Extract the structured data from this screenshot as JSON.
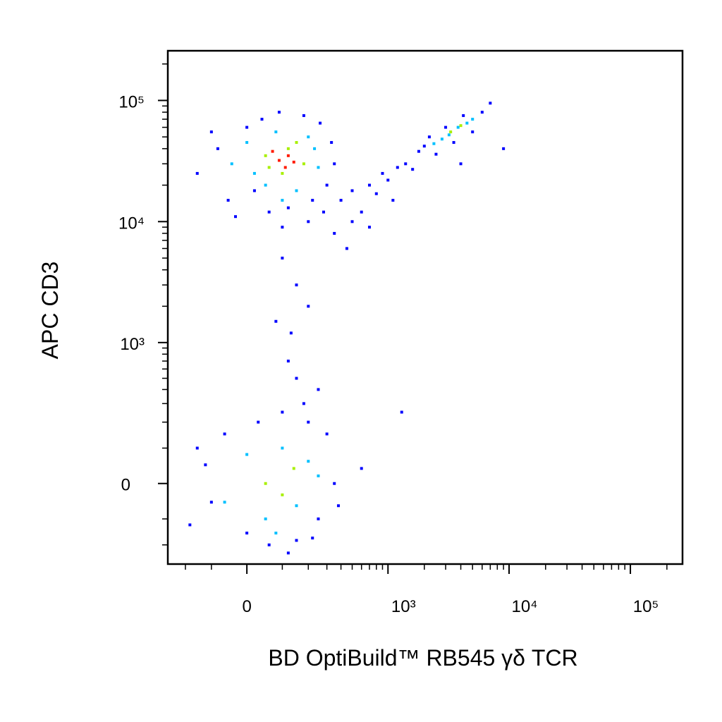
{
  "chart_data": {
    "type": "scatter",
    "x_label": "BD OptiBuild™ RB545 γδ TCR",
    "y_label": "APC CD3",
    "xscale": "biexponential",
    "yscale": "biexponential",
    "xlim": [
      -294,
      269000
    ],
    "ylim": [
      -304,
      257000
    ],
    "xticks": [
      0,
      {
        "value": 1000,
        "label": "10³"
      },
      {
        "value": 10000,
        "label": "10⁴"
      },
      {
        "value": 100000,
        "label": "10⁵"
      }
    ],
    "yticks": [
      0,
      {
        "value": 1000,
        "label": "10³"
      },
      {
        "value": 10000,
        "label": "10⁴"
      },
      {
        "value": 100000,
        "label": "10⁵"
      }
    ],
    "xminor": [
      -200,
      -100,
      100,
      200,
      300,
      400,
      500,
      600,
      700,
      800,
      900,
      2000,
      3000,
      4000,
      5000,
      6000,
      7000,
      8000,
      9000,
      20000,
      30000,
      40000,
      50000,
      60000,
      70000,
      80000,
      90000,
      200000
    ],
    "yminor": [
      -200,
      -100,
      100,
      200,
      300,
      400,
      500,
      600,
      700,
      800,
      900,
      2000,
      3000,
      4000,
      5000,
      6000,
      7000,
      8000,
      9000,
      20000,
      30000,
      40000,
      50000,
      60000,
      70000,
      80000,
      90000,
      200000
    ],
    "series": [
      {
        "color": "#0000ff",
        "x": [
          -150,
          -80,
          -50,
          0,
          20,
          40,
          60,
          90,
          120,
          180,
          220,
          260,
          300,
          330,
          350,
          -100,
          280,
          200,
          100,
          -30,
          400,
          500,
          600,
          700,
          800,
          900,
          1000,
          1200,
          1400,
          1600,
          500,
          700,
          1100,
          350,
          450,
          100,
          150,
          80,
          200,
          130,
          120,
          150,
          180,
          250,
          1300,
          1800,
          2200,
          2500,
          3000,
          3500,
          4200,
          5000,
          6000,
          7000,
          9000,
          4000,
          2000,
          -180,
          -120,
          -60,
          0,
          30,
          60,
          100,
          150,
          200,
          250,
          300,
          350,
          380,
          -100,
          120,
          220,
          600,
          -150
        ],
        "values": [
          25000,
          40000,
          15000,
          60000,
          18000,
          70000,
          12000,
          80000,
          13000,
          75000,
          15000,
          65000,
          20000,
          45000,
          30000,
          55000,
          12000,
          10000,
          9000,
          11000,
          15000,
          18000,
          12000,
          20000,
          17000,
          25000,
          22000,
          28000,
          30000,
          27000,
          10000,
          9000,
          15000,
          8000,
          6000,
          5000,
          3000,
          1500,
          2000,
          1200,
          700,
          500,
          300,
          400,
          250,
          38000,
          50000,
          36000,
          60000,
          45000,
          75000,
          55000,
          80000,
          95000,
          40000,
          30000,
          42000,
          -120,
          50,
          150,
          -150,
          200,
          -200,
          250,
          -180,
          200,
          -100,
          150,
          0,
          -60,
          -50,
          -240,
          -170,
          40,
          100
        ]
      },
      {
        "color": "#00c0ff",
        "x": [
          -40,
          0,
          50,
          80,
          150,
          200,
          250,
          20,
          230,
          100,
          2800,
          3200,
          3800,
          4500,
          2400,
          5000,
          -60,
          0,
          50,
          100,
          150,
          200,
          250,
          80
        ],
        "values": [
          30000,
          45000,
          20000,
          55000,
          18000,
          50000,
          28000,
          25000,
          40000,
          15000,
          48000,
          52000,
          60000,
          65000,
          44000,
          70000,
          -50,
          80,
          -100,
          100,
          -60,
          60,
          20,
          -150
        ]
      },
      {
        "color": "#a8f000",
        "x": [
          50,
          100,
          150,
          180,
          60,
          120,
          3300,
          4000,
          50,
          100,
          140
        ],
        "values": [
          35000,
          25000,
          45000,
          30000,
          28000,
          40000,
          55000,
          62000,
          0,
          -30,
          40
        ]
      },
      {
        "color": "#ff1a00",
        "x": [
          90,
          120,
          110,
          70,
          140
        ],
        "values": [
          32000,
          35000,
          28000,
          38000,
          31000
        ]
      }
    ]
  }
}
